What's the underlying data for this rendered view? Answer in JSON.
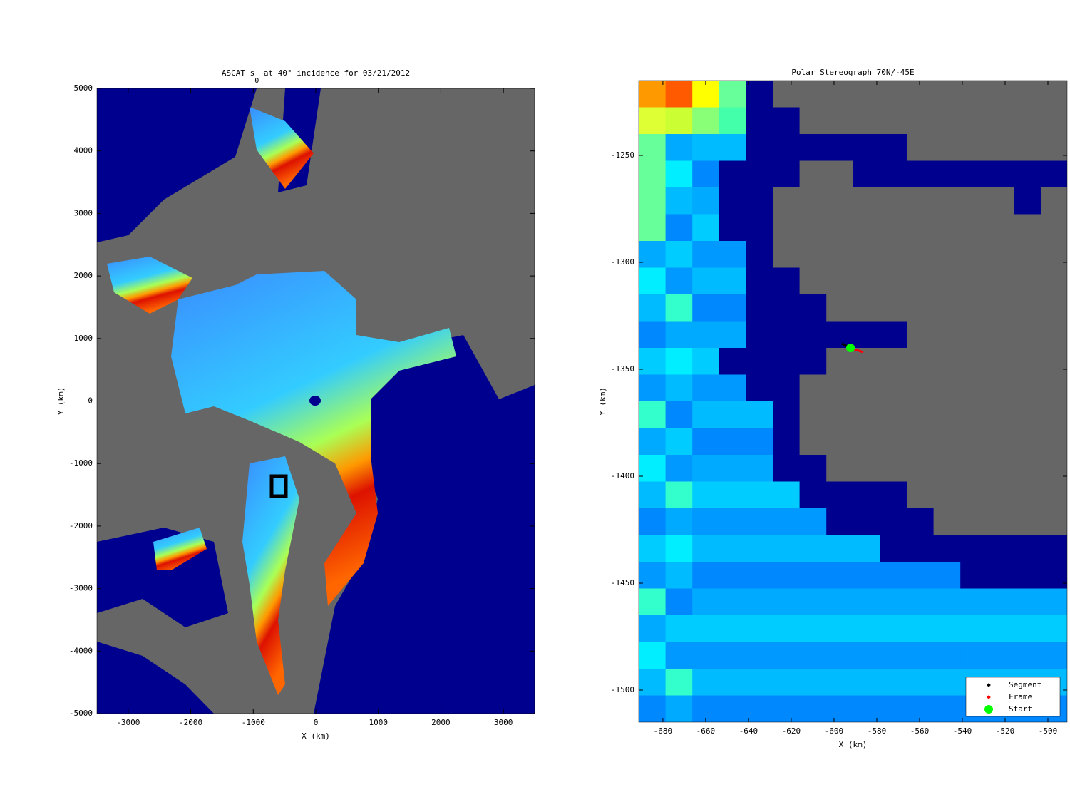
{
  "chart_data": [
    {
      "type": "image",
      "title": [
        "ASCAT s",
        "0",
        " at 40° incidence for 03/21/2012"
      ],
      "x_label": "X (km)",
      "y_label": "Y (km)",
      "xlim": [
        -3500,
        3500
      ],
      "ylim": [
        -5000,
        5000
      ],
      "xticks": [
        -3000,
        -2000,
        -1000,
        0,
        1000,
        2000,
        3000
      ],
      "yticks": [
        -5000,
        -4000,
        -3000,
        -2000,
        -1000,
        0,
        1000,
        2000,
        3000,
        4000,
        5000
      ]
    },
    {
      "type": "scatter",
      "title": "Polar Stereograph 70N/-45E",
      "x_label": "X (km)",
      "y_label": "Y (km)",
      "xlim": [
        -691.3,
        -491
      ],
      "ylim": [
        -1515,
        -1215
      ],
      "xticks": [
        -680,
        -660,
        -640,
        -620,
        -600,
        -580,
        -560,
        -540,
        -520,
        -500
      ],
      "yticks": [
        -1500,
        -1450,
        -1400,
        -1350,
        -1300,
        -1250
      ],
      "legend": "lower right",
      "series": [
        {
          "name": "Segment",
          "color": "#000000",
          "x": [
            -596.3,
            -592.3
          ],
          "y": [
            -1338,
            -1340
          ]
        },
        {
          "name": "Frame",
          "color": "#ff0000",
          "x": [
            -591.7,
            -586.3
          ],
          "y": [
            -1340.3,
            -1342
          ]
        },
        {
          "name": "Start",
          "color": "#00ff00",
          "x": [
            -592.3
          ],
          "y": [
            -1340
          ]
        }
      ]
    }
  ]
}
